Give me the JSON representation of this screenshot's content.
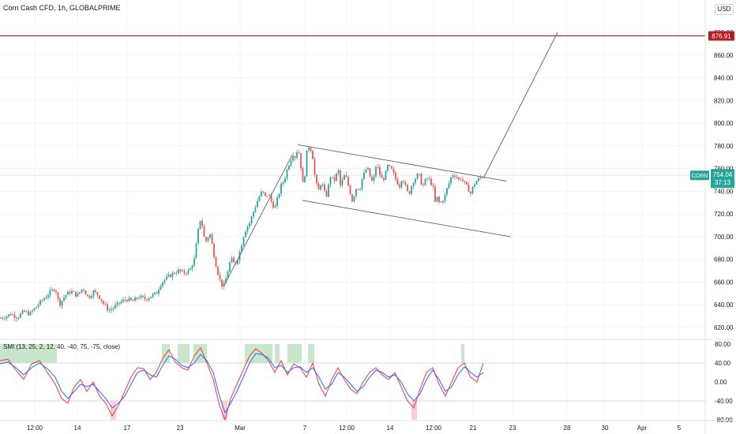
{
  "header": {
    "title": "Corn Cash CFD, 1h, GLOBALPRIME",
    "currency": "USD"
  },
  "price_axis": {
    "ticks": [
      "880.00",
      "860.00",
      "840.00",
      "820.00",
      "800.00",
      "780.00",
      "760.00",
      "740.00",
      "720.00",
      "700.00",
      "680.00",
      "660.00",
      "640.00",
      "620.00"
    ],
    "target_label": "876.91",
    "symbol_tag": "CORN",
    "last_price": "754.04",
    "countdown": "37:13"
  },
  "indicator": {
    "label": "SMI (13, 25, 2, 12, 40, -40, 75, -75, close)",
    "ticks": [
      "80.00",
      "40.00",
      "0.00",
      "-40.00",
      "-80.00"
    ]
  },
  "time_axis": {
    "ticks": [
      "12:00",
      "14",
      "17",
      "23",
      "Mar",
      "7",
      "12:00",
      "14",
      "12:00",
      "21",
      "23",
      "28",
      "30",
      "Apr",
      "5"
    ]
  },
  "colors": {
    "up": "#26a69a",
    "down": "#ef5350",
    "target_line": "#b71c1c",
    "last_price_line": "#26a69a",
    "smi_blue": "#2962ff",
    "smi_red": "#f23645",
    "zone_green": "#c8e6c9",
    "zone_red": "#ffcdd2"
  },
  "chart_data": {
    "type": "candlestick",
    "symbol": "CORN",
    "interval": "1h",
    "ylim": [
      612,
      890
    ],
    "price_path": [
      [
        0,
        628
      ],
      [
        8,
        630
      ],
      [
        14,
        632
      ],
      [
        22,
        629
      ],
      [
        30,
        634
      ],
      [
        38,
        632
      ],
      [
        48,
        640
      ],
      [
        55,
        645
      ],
      [
        62,
        650
      ],
      [
        70,
        655
      ],
      [
        75,
        640
      ],
      [
        82,
        648
      ],
      [
        90,
        652
      ],
      [
        98,
        648
      ],
      [
        105,
        655
      ],
      [
        112,
        646
      ],
      [
        118,
        652
      ],
      [
        125,
        648
      ],
      [
        132,
        640
      ],
      [
        138,
        635
      ],
      [
        145,
        638
      ],
      [
        152,
        642
      ],
      [
        160,
        645
      ],
      [
        168,
        643
      ],
      [
        176,
        647
      ],
      [
        184,
        645
      ],
      [
        192,
        648
      ],
      [
        198,
        650
      ],
      [
        203,
        658
      ],
      [
        208,
        662
      ],
      [
        214,
        665
      ],
      [
        220,
        668
      ],
      [
        226,
        670
      ],
      [
        232,
        668
      ],
      [
        240,
        670
      ],
      [
        246,
        680
      ],
      [
        250,
        700
      ],
      [
        253,
        716
      ],
      [
        256,
        710
      ],
      [
        258,
        700
      ],
      [
        262,
        695
      ],
      [
        265,
        705
      ],
      [
        268,
        695
      ],
      [
        272,
        680
      ],
      [
        276,
        668
      ],
      [
        280,
        658
      ],
      [
        283,
        656
      ],
      [
        287,
        665
      ],
      [
        290,
        675
      ],
      [
        293,
        680
      ],
      [
        297,
        676
      ],
      [
        300,
        678
      ],
      [
        304,
        688
      ],
      [
        308,
        700
      ],
      [
        312,
        708
      ],
      [
        316,
        712
      ],
      [
        320,
        720
      ],
      [
        324,
        728
      ],
      [
        328,
        735
      ],
      [
        332,
        740
      ],
      [
        336,
        735
      ],
      [
        340,
        738
      ],
      [
        344,
        730
      ],
      [
        348,
        725
      ],
      [
        352,
        735
      ],
      [
        356,
        745
      ],
      [
        360,
        750
      ],
      [
        364,
        760
      ],
      [
        368,
        768
      ],
      [
        371,
        773
      ],
      [
        374,
        770
      ],
      [
        377,
        778
      ],
      [
        380,
        770
      ],
      [
        383,
        745
      ],
      [
        386,
        755
      ],
      [
        389,
        778
      ],
      [
        392,
        780
      ],
      [
        394,
        776
      ],
      [
        396,
        770
      ],
      [
        398,
        756
      ],
      [
        401,
        745
      ],
      [
        404,
        740
      ],
      [
        407,
        750
      ],
      [
        410,
        740
      ],
      [
        413,
        735
      ],
      [
        416,
        745
      ],
      [
        419,
        755
      ],
      [
        422,
        748
      ],
      [
        425,
        752
      ],
      [
        428,
        760
      ],
      [
        431,
        745
      ],
      [
        434,
        750
      ],
      [
        437,
        755
      ],
      [
        440,
        748
      ],
      [
        443,
        740
      ],
      [
        446,
        732
      ],
      [
        449,
        738
      ],
      [
        452,
        745
      ],
      [
        455,
        740
      ],
      [
        458,
        750
      ],
      [
        461,
        755
      ],
      [
        464,
        760
      ],
      [
        467,
        758
      ],
      [
        470,
        748
      ],
      [
        473,
        750
      ],
      [
        476,
        762
      ],
      [
        479,
        760
      ],
      [
        482,
        752
      ],
      [
        485,
        750
      ],
      [
        488,
        755
      ],
      [
        491,
        762
      ],
      [
        494,
        760
      ],
      [
        497,
        758
      ],
      [
        500,
        752
      ],
      [
        503,
        748
      ],
      [
        506,
        745
      ],
      [
        509,
        752
      ],
      [
        512,
        748
      ],
      [
        515,
        740
      ],
      [
        518,
        738
      ],
      [
        521,
        745
      ],
      [
        524,
        750
      ],
      [
        527,
        752
      ],
      [
        530,
        756
      ],
      [
        533,
        748
      ],
      [
        536,
        745
      ],
      [
        539,
        750
      ],
      [
        542,
        752
      ],
      [
        545,
        748
      ],
      [
        548,
        745
      ],
      [
        551,
        730
      ],
      [
        554,
        735
      ],
      [
        557,
        728
      ],
      [
        560,
        732
      ],
      [
        563,
        735
      ],
      [
        566,
        742
      ],
      [
        569,
        748
      ],
      [
        572,
        754
      ],
      [
        575,
        755
      ],
      [
        578,
        753
      ],
      [
        581,
        750
      ],
      [
        584,
        752
      ],
      [
        587,
        748
      ],
      [
        590,
        745
      ],
      [
        593,
        742
      ],
      [
        596,
        738
      ],
      [
        599,
        744
      ],
      [
        602,
        748
      ],
      [
        605,
        750
      ],
      [
        608,
        752
      ],
      [
        611,
        753
      ],
      [
        614,
        754.04
      ]
    ],
    "channel": {
      "upper": [
        [
          377,
          781
        ],
        [
          641,
          749
        ]
      ],
      "lower": [
        [
          383,
          732
        ],
        [
          646,
          700
        ]
      ]
    },
    "impulse_line": [
      [
        283,
        656
      ],
      [
        370,
        772
      ]
    ],
    "projection": [
      [
        614,
        754.04
      ],
      [
        706,
        880
      ]
    ],
    "target_level": 876.91,
    "last_price": 754.04,
    "smi": {
      "ylim": [
        -95,
        95
      ],
      "overbought": 40,
      "oversold": -40,
      "blue": [
        [
          0,
          38
        ],
        [
          10,
          42
        ],
        [
          20,
          30
        ],
        [
          30,
          15
        ],
        [
          40,
          30
        ],
        [
          50,
          40
        ],
        [
          60,
          28
        ],
        [
          70,
          10
        ],
        [
          78,
          -20
        ],
        [
          86,
          -35
        ],
        [
          94,
          -20
        ],
        [
          102,
          -5
        ],
        [
          110,
          -10
        ],
        [
          118,
          -5
        ],
        [
          126,
          -20
        ],
        [
          134,
          -35
        ],
        [
          142,
          -55
        ],
        [
          150,
          -45
        ],
        [
          158,
          -30
        ],
        [
          166,
          -5
        ],
        [
          174,
          20
        ],
        [
          182,
          25
        ],
        [
          190,
          15
        ],
        [
          198,
          10
        ],
        [
          206,
          35
        ],
        [
          214,
          55
        ],
        [
          222,
          48
        ],
        [
          230,
          35
        ],
        [
          238,
          30
        ],
        [
          246,
          40
        ],
        [
          254,
          58
        ],
        [
          262,
          45
        ],
        [
          270,
          20
        ],
        [
          278,
          -30
        ],
        [
          285,
          -65
        ],
        [
          292,
          -45
        ],
        [
          300,
          -20
        ],
        [
          308,
          10
        ],
        [
          316,
          40
        ],
        [
          324,
          60
        ],
        [
          332,
          58
        ],
        [
          340,
          50
        ],
        [
          348,
          30
        ],
        [
          356,
          35
        ],
        [
          364,
          20
        ],
        [
          372,
          30
        ],
        [
          380,
          32
        ],
        [
          388,
          20
        ],
        [
          396,
          30
        ],
        [
          404,
          10
        ],
        [
          412,
          -15
        ],
        [
          420,
          -5
        ],
        [
          428,
          20
        ],
        [
          436,
          10
        ],
        [
          444,
          -5
        ],
        [
          452,
          -20
        ],
        [
          460,
          -10
        ],
        [
          468,
          10
        ],
        [
          476,
          25
        ],
        [
          484,
          20
        ],
        [
          492,
          10
        ],
        [
          500,
          15
        ],
        [
          508,
          0
        ],
        [
          516,
          -25
        ],
        [
          524,
          -40
        ],
        [
          532,
          -25
        ],
        [
          540,
          5
        ],
        [
          548,
          25
        ],
        [
          556,
          5
        ],
        [
          564,
          -20
        ],
        [
          572,
          -10
        ],
        [
          580,
          15
        ],
        [
          588,
          32
        ],
        [
          596,
          20
        ],
        [
          604,
          10
        ],
        [
          612,
          20
        ]
      ],
      "red": [
        [
          0,
          45
        ],
        [
          10,
          48
        ],
        [
          20,
          25
        ],
        [
          30,
          5
        ],
        [
          40,
          38
        ],
        [
          50,
          45
        ],
        [
          60,
          20
        ],
        [
          70,
          -5
        ],
        [
          78,
          -35
        ],
        [
          86,
          -45
        ],
        [
          94,
          -10
        ],
        [
          102,
          5
        ],
        [
          110,
          -20
        ],
        [
          118,
          0
        ],
        [
          126,
          -30
        ],
        [
          134,
          -45
        ],
        [
          142,
          -72
        ],
        [
          150,
          -50
        ],
        [
          158,
          -20
        ],
        [
          166,
          10
        ],
        [
          174,
          30
        ],
        [
          182,
          28
        ],
        [
          190,
          5
        ],
        [
          198,
          20
        ],
        [
          206,
          50
        ],
        [
          214,
          68
        ],
        [
          222,
          42
        ],
        [
          230,
          30
        ],
        [
          238,
          25
        ],
        [
          246,
          55
        ],
        [
          254,
          72
        ],
        [
          262,
          40
        ],
        [
          270,
          5
        ],
        [
          278,
          -50
        ],
        [
          285,
          -80
        ],
        [
          292,
          -35
        ],
        [
          300,
          -5
        ],
        [
          308,
          25
        ],
        [
          316,
          55
        ],
        [
          324,
          70
        ],
        [
          332,
          60
        ],
        [
          340,
          45
        ],
        [
          348,
          20
        ],
        [
          356,
          45
        ],
        [
          364,
          15
        ],
        [
          372,
          38
        ],
        [
          380,
          30
        ],
        [
          388,
          10
        ],
        [
          396,
          40
        ],
        [
          404,
          -5
        ],
        [
          412,
          -30
        ],
        [
          420,
          5
        ],
        [
          428,
          30
        ],
        [
          436,
          5
        ],
        [
          444,
          -15
        ],
        [
          452,
          -25
        ],
        [
          460,
          0
        ],
        [
          468,
          20
        ],
        [
          476,
          30
        ],
        [
          484,
          15
        ],
        [
          492,
          5
        ],
        [
          500,
          20
        ],
        [
          508,
          -10
        ],
        [
          516,
          -40
        ],
        [
          524,
          -55
        ],
        [
          532,
          -15
        ],
        [
          540,
          20
        ],
        [
          548,
          30
        ],
        [
          556,
          -5
        ],
        [
          564,
          -30
        ],
        [
          572,
          0
        ],
        [
          580,
          30
        ],
        [
          588,
          40
        ],
        [
          596,
          10
        ],
        [
          604,
          0
        ],
        [
          612,
          40
        ]
      ],
      "zones_green": [
        [
          0,
          72
        ],
        [
          205,
          215
        ],
        [
          225,
          240
        ],
        [
          245,
          262
        ],
        [
          310,
          345
        ],
        [
          348,
          354
        ],
        [
          364,
          382
        ],
        [
          390,
          398
        ],
        [
          584,
          588
        ]
      ],
      "zones_red": [
        [
          140,
          147
        ],
        [
          281,
          288
        ],
        [
          521,
          528
        ]
      ]
    }
  }
}
